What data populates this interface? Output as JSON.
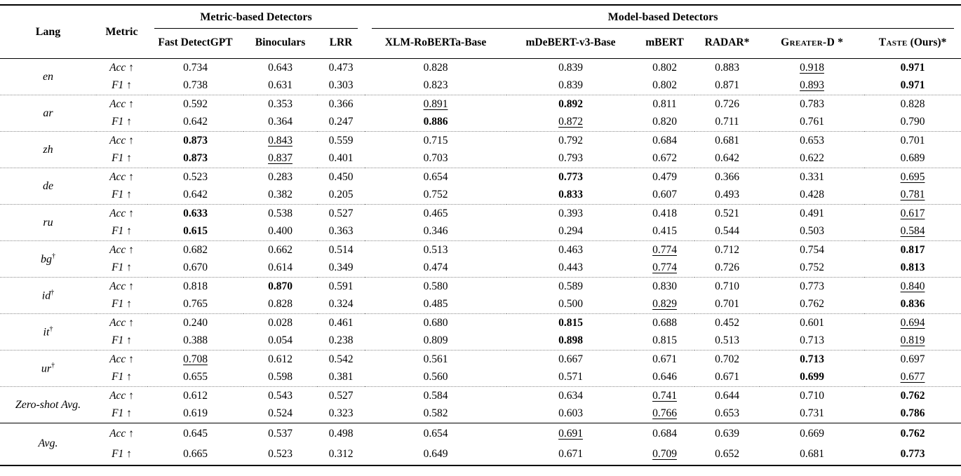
{
  "table": {
    "corner": {
      "lang": "Lang",
      "metric": "Metric"
    },
    "arrow": "↑",
    "col_groups": [
      {
        "label": "Metric-based Detectors"
      },
      {
        "label": "Model-based Detectors"
      }
    ],
    "detectors": [
      {
        "label": "Fast DetectGPT",
        "suffix": "",
        "smallcaps": false
      },
      {
        "label": "Binoculars",
        "suffix": "",
        "smallcaps": false
      },
      {
        "label": "LRR",
        "suffix": "",
        "smallcaps": false
      },
      {
        "label": "XLM-RoBERTa-Base",
        "suffix": "",
        "smallcaps": false
      },
      {
        "label": "mDeBERT-v3-Base",
        "suffix": "",
        "smallcaps": false
      },
      {
        "label": "mBERT",
        "suffix": "",
        "smallcaps": false
      },
      {
        "label": "RADAR*",
        "suffix": "",
        "smallcaps": false
      },
      {
        "label": "Greater-D",
        "suffix": " *",
        "smallcaps": true
      },
      {
        "label": "Taste",
        "suffix": " (Ours)*",
        "smallcaps": true
      }
    ],
    "groups": [
      {
        "lang": "en",
        "dagger": false,
        "sep": "dotted",
        "roomy": false,
        "rows": [
          {
            "metric": "Acc",
            "v": [
              [
                "0.734",
                ""
              ],
              [
                "0.643",
                ""
              ],
              [
                "0.473",
                ""
              ],
              [
                "0.828",
                ""
              ],
              [
                "0.839",
                ""
              ],
              [
                "0.802",
                ""
              ],
              [
                "0.883",
                ""
              ],
              [
                "0.918",
                "u"
              ],
              [
                "0.971",
                "b"
              ]
            ]
          },
          {
            "metric": "F1",
            "v": [
              [
                "0.738",
                ""
              ],
              [
                "0.631",
                ""
              ],
              [
                "0.303",
                ""
              ],
              [
                "0.823",
                ""
              ],
              [
                "0.839",
                ""
              ],
              [
                "0.802",
                ""
              ],
              [
                "0.871",
                ""
              ],
              [
                "0.893",
                "u"
              ],
              [
                "0.971",
                "b"
              ]
            ]
          }
        ]
      },
      {
        "lang": "ar",
        "dagger": false,
        "sep": "dotted",
        "roomy": false,
        "rows": [
          {
            "metric": "Acc",
            "v": [
              [
                "0.592",
                ""
              ],
              [
                "0.353",
                ""
              ],
              [
                "0.366",
                ""
              ],
              [
                "0.891",
                "u"
              ],
              [
                "0.892",
                "b"
              ],
              [
                "0.811",
                ""
              ],
              [
                "0.726",
                ""
              ],
              [
                "0.783",
                ""
              ],
              [
                "0.828",
                ""
              ]
            ]
          },
          {
            "metric": "F1",
            "v": [
              [
                "0.642",
                ""
              ],
              [
                "0.364",
                ""
              ],
              [
                "0.247",
                ""
              ],
              [
                "0.886",
                "b"
              ],
              [
                "0.872",
                "u"
              ],
              [
                "0.820",
                ""
              ],
              [
                "0.711",
                ""
              ],
              [
                "0.761",
                ""
              ],
              [
                "0.790",
                ""
              ]
            ]
          }
        ]
      },
      {
        "lang": "zh",
        "dagger": false,
        "sep": "dotted",
        "roomy": false,
        "rows": [
          {
            "metric": "Acc",
            "v": [
              [
                "0.873",
                "b"
              ],
              [
                "0.843",
                "u"
              ],
              [
                "0.559",
                ""
              ],
              [
                "0.715",
                ""
              ],
              [
                "0.792",
                ""
              ],
              [
                "0.684",
                ""
              ],
              [
                "0.681",
                ""
              ],
              [
                "0.653",
                ""
              ],
              [
                "0.701",
                ""
              ]
            ]
          },
          {
            "metric": "F1",
            "v": [
              [
                "0.873",
                "b"
              ],
              [
                "0.837",
                "u"
              ],
              [
                "0.401",
                ""
              ],
              [
                "0.703",
                ""
              ],
              [
                "0.793",
                ""
              ],
              [
                "0.672",
                ""
              ],
              [
                "0.642",
                ""
              ],
              [
                "0.622",
                ""
              ],
              [
                "0.689",
                ""
              ]
            ]
          }
        ]
      },
      {
        "lang": "de",
        "dagger": false,
        "sep": "dotted",
        "roomy": false,
        "rows": [
          {
            "metric": "Acc",
            "v": [
              [
                "0.523",
                ""
              ],
              [
                "0.283",
                ""
              ],
              [
                "0.450",
                ""
              ],
              [
                "0.654",
                ""
              ],
              [
                "0.773",
                "b"
              ],
              [
                "0.479",
                ""
              ],
              [
                "0.366",
                ""
              ],
              [
                "0.331",
                ""
              ],
              [
                "0.695",
                "u"
              ]
            ]
          },
          {
            "metric": "F1",
            "v": [
              [
                "0.642",
                ""
              ],
              [
                "0.382",
                ""
              ],
              [
                "0.205",
                ""
              ],
              [
                "0.752",
                ""
              ],
              [
                "0.833",
                "b"
              ],
              [
                "0.607",
                ""
              ],
              [
                "0.493",
                ""
              ],
              [
                "0.428",
                ""
              ],
              [
                "0.781",
                "u"
              ]
            ]
          }
        ]
      },
      {
        "lang": "ru",
        "dagger": false,
        "sep": "dotted",
        "roomy": false,
        "rows": [
          {
            "metric": "Acc",
            "v": [
              [
                "0.633",
                "b"
              ],
              [
                "0.538",
                ""
              ],
              [
                "0.527",
                ""
              ],
              [
                "0.465",
                ""
              ],
              [
                "0.393",
                ""
              ],
              [
                "0.418",
                ""
              ],
              [
                "0.521",
                ""
              ],
              [
                "0.491",
                ""
              ],
              [
                "0.617",
                "u"
              ]
            ]
          },
          {
            "metric": "F1",
            "v": [
              [
                "0.615",
                "b"
              ],
              [
                "0.400",
                ""
              ],
              [
                "0.363",
                ""
              ],
              [
                "0.346",
                ""
              ],
              [
                "0.294",
                ""
              ],
              [
                "0.415",
                ""
              ],
              [
                "0.544",
                ""
              ],
              [
                "0.503",
                ""
              ],
              [
                "0.584",
                "u"
              ]
            ]
          }
        ]
      },
      {
        "lang": "bg",
        "dagger": true,
        "sep": "dotted",
        "roomy": false,
        "rows": [
          {
            "metric": "Acc",
            "v": [
              [
                "0.682",
                ""
              ],
              [
                "0.662",
                ""
              ],
              [
                "0.514",
                ""
              ],
              [
                "0.513",
                ""
              ],
              [
                "0.463",
                ""
              ],
              [
                "0.774",
                "u"
              ],
              [
                "0.712",
                ""
              ],
              [
                "0.754",
                ""
              ],
              [
                "0.817",
                "b"
              ]
            ]
          },
          {
            "metric": "F1",
            "v": [
              [
                "0.670",
                ""
              ],
              [
                "0.614",
                ""
              ],
              [
                "0.349",
                ""
              ],
              [
                "0.474",
                ""
              ],
              [
                "0.443",
                ""
              ],
              [
                "0.774",
                "u"
              ],
              [
                "0.726",
                ""
              ],
              [
                "0.752",
                ""
              ],
              [
                "0.813",
                "b"
              ]
            ]
          }
        ]
      },
      {
        "lang": "id",
        "dagger": true,
        "sep": "dotted",
        "roomy": false,
        "rows": [
          {
            "metric": "Acc",
            "v": [
              [
                "0.818",
                ""
              ],
              [
                "0.870",
                "b"
              ],
              [
                "0.591",
                ""
              ],
              [
                "0.580",
                ""
              ],
              [
                "0.589",
                ""
              ],
              [
                "0.830",
                ""
              ],
              [
                "0.710",
                ""
              ],
              [
                "0.773",
                ""
              ],
              [
                "0.840",
                "u"
              ]
            ]
          },
          {
            "metric": "F1",
            "v": [
              [
                "0.765",
                ""
              ],
              [
                "0.828",
                ""
              ],
              [
                "0.324",
                ""
              ],
              [
                "0.485",
                ""
              ],
              [
                "0.500",
                ""
              ],
              [
                "0.829",
                "u"
              ],
              [
                "0.701",
                ""
              ],
              [
                "0.762",
                ""
              ],
              [
                "0.836",
                "b"
              ]
            ]
          }
        ]
      },
      {
        "lang": "it",
        "dagger": true,
        "sep": "dotted",
        "roomy": false,
        "rows": [
          {
            "metric": "Acc",
            "v": [
              [
                "0.240",
                ""
              ],
              [
                "0.028",
                ""
              ],
              [
                "0.461",
                ""
              ],
              [
                "0.680",
                ""
              ],
              [
                "0.815",
                "b"
              ],
              [
                "0.688",
                ""
              ],
              [
                "0.452",
                ""
              ],
              [
                "0.601",
                ""
              ],
              [
                "0.694",
                "u"
              ]
            ]
          },
          {
            "metric": "F1",
            "v": [
              [
                "0.388",
                ""
              ],
              [
                "0.054",
                ""
              ],
              [
                "0.238",
                ""
              ],
              [
                "0.809",
                ""
              ],
              [
                "0.898",
                "b"
              ],
              [
                "0.815",
                ""
              ],
              [
                "0.513",
                ""
              ],
              [
                "0.713",
                ""
              ],
              [
                "0.819",
                "u"
              ]
            ]
          }
        ]
      },
      {
        "lang": "ur",
        "dagger": true,
        "sep": "dotted",
        "roomy": false,
        "rows": [
          {
            "metric": "Acc",
            "v": [
              [
                "0.708",
                "u"
              ],
              [
                "0.612",
                ""
              ],
              [
                "0.542",
                ""
              ],
              [
                "0.561",
                ""
              ],
              [
                "0.667",
                ""
              ],
              [
                "0.671",
                ""
              ],
              [
                "0.702",
                ""
              ],
              [
                "0.713",
                "b"
              ],
              [
                "0.697",
                ""
              ]
            ]
          },
          {
            "metric": "F1",
            "v": [
              [
                "0.655",
                ""
              ],
              [
                "0.598",
                ""
              ],
              [
                "0.381",
                ""
              ],
              [
                "0.560",
                ""
              ],
              [
                "0.571",
                ""
              ],
              [
                "0.646",
                ""
              ],
              [
                "0.671",
                ""
              ],
              [
                "0.699",
                "b"
              ],
              [
                "0.677",
                "u"
              ]
            ]
          }
        ]
      },
      {
        "lang": "Zero-shot Avg.",
        "dagger": false,
        "sep": "solid",
        "roomy": false,
        "rows": [
          {
            "metric": "Acc",
            "v": [
              [
                "0.612",
                ""
              ],
              [
                "0.543",
                ""
              ],
              [
                "0.527",
                ""
              ],
              [
                "0.584",
                ""
              ],
              [
                "0.634",
                ""
              ],
              [
                "0.741",
                "u"
              ],
              [
                "0.644",
                ""
              ],
              [
                "0.710",
                ""
              ],
              [
                "0.762",
                "b"
              ]
            ]
          },
          {
            "metric": "F1",
            "v": [
              [
                "0.619",
                ""
              ],
              [
                "0.524",
                ""
              ],
              [
                "0.323",
                ""
              ],
              [
                "0.582",
                ""
              ],
              [
                "0.603",
                ""
              ],
              [
                "0.766",
                "u"
              ],
              [
                "0.653",
                ""
              ],
              [
                "0.731",
                ""
              ],
              [
                "0.786",
                "b"
              ]
            ]
          }
        ]
      },
      {
        "lang": "Avg.",
        "dagger": false,
        "sep": "none",
        "roomy": true,
        "rows": [
          {
            "metric": "Acc",
            "v": [
              [
                "0.645",
                ""
              ],
              [
                "0.537",
                ""
              ],
              [
                "0.498",
                ""
              ],
              [
                "0.654",
                ""
              ],
              [
                "0.691",
                "u"
              ],
              [
                "0.684",
                ""
              ],
              [
                "0.639",
                ""
              ],
              [
                "0.669",
                ""
              ],
              [
                "0.762",
                "b"
              ]
            ]
          },
          {
            "metric": "F1",
            "v": [
              [
                "0.665",
                ""
              ],
              [
                "0.523",
                ""
              ],
              [
                "0.312",
                ""
              ],
              [
                "0.649",
                ""
              ],
              [
                "0.671",
                ""
              ],
              [
                "0.709",
                "u"
              ],
              [
                "0.652",
                ""
              ],
              [
                "0.681",
                ""
              ],
              [
                "0.773",
                "b"
              ]
            ]
          }
        ]
      }
    ]
  }
}
